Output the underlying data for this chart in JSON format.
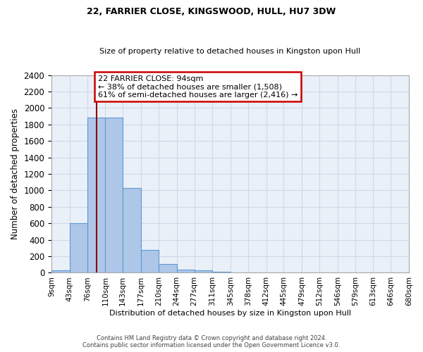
{
  "title1": "22, FARRIER CLOSE, KINGSWOOD, HULL, HU7 3DW",
  "title2": "Size of property relative to detached houses in Kingston upon Hull",
  "xlabel": "Distribution of detached houses by size in Kingston upon Hull",
  "ylabel": "Number of detached properties",
  "footer1": "Contains HM Land Registry data © Crown copyright and database right 2024.",
  "footer2": "Contains public sector information licensed under the Open Government Licence v3.0.",
  "bin_edges": [
    9,
    43,
    76,
    110,
    143,
    177,
    210,
    244,
    277,
    311,
    345,
    378,
    412,
    445,
    479,
    512,
    546,
    579,
    613,
    646,
    680
  ],
  "bar_heights": [
    30,
    600,
    1880,
    1880,
    1030,
    280,
    110,
    40,
    30,
    10,
    5,
    5,
    3,
    2,
    1,
    1,
    1,
    1,
    1,
    1
  ],
  "property_size": 94,
  "annotation_title": "22 FARRIER CLOSE: 94sqm",
  "annotation_line1": "← 38% of detached houses are smaller (1,508)",
  "annotation_line2": "61% of semi-detached houses are larger (2,416) →",
  "bar_color": "#aec6e8",
  "bar_edge_color": "#5b9bd5",
  "vline_color": "#8b0000",
  "annotation_box_edgecolor": "#cc0000",
  "background_color": "#eaf0f8",
  "ylim": [
    0,
    2400
  ],
  "yticks": [
    0,
    200,
    400,
    600,
    800,
    1000,
    1200,
    1400,
    1600,
    1800,
    2000,
    2200,
    2400
  ],
  "grid_color": "#d0d8e8"
}
